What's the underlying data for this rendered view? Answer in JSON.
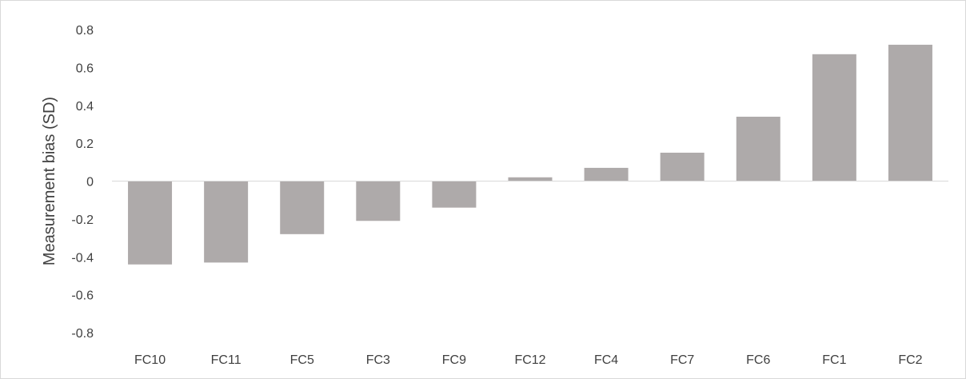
{
  "chart_data": {
    "type": "bar",
    "title": "",
    "xlabel": "",
    "ylabel": "Measurement bias (SD)",
    "categories": [
      "FC10",
      "FC11",
      "FC5",
      "FC3",
      "FC9",
      "FC12",
      "FC4",
      "FC7",
      "FC6",
      "FC1",
      "FC2"
    ],
    "values": [
      -0.44,
      -0.43,
      -0.28,
      -0.21,
      -0.14,
      0.02,
      0.07,
      0.15,
      0.34,
      0.67,
      0.72
    ],
    "ylim": [
      -0.8,
      0.8
    ],
    "yticks": [
      0.8,
      0.6,
      0.4,
      0.2,
      0,
      -0.2,
      -0.4,
      -0.6,
      -0.8
    ],
    "ytick_labels": [
      "0.8",
      "0.6",
      "0.4",
      "0.2",
      "0",
      "-0.2",
      "-0.4",
      "-0.6",
      "-0.8"
    ],
    "grid": false,
    "legend": "none",
    "bar_color": "#aeaaaa",
    "axis_color": "#d9d9d9",
    "text_color": "#404040"
  }
}
